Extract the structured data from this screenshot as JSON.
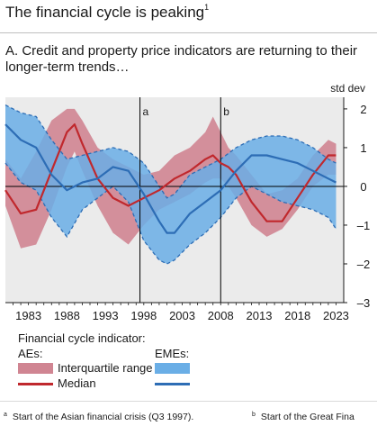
{
  "title": "The financial cycle is peaking",
  "title_note": "1",
  "panel_title": "A. Credit and property price indicators are returning to their longer-term trends…",
  "legend": {
    "header": "Financial cycle indicator:",
    "group_ae": "AEs:",
    "group_eme": "EMEs:",
    "iqr_label": "Interquartile range",
    "median_label": "Median"
  },
  "footnotes": [
    {
      "mark": "a",
      "text": "Start of the Asian financial crisis (Q3 1997)."
    },
    {
      "mark": "b",
      "text": "Start of the Great Fina"
    }
  ],
  "colors": {
    "ae_band": "#d08592",
    "ae_line": "#c0282d",
    "eme_band": "#6aaee6",
    "eme_line": "#2d6db5",
    "plot_bg": "#ebebeb"
  },
  "chart_data": {
    "type": "area",
    "unit_label": "std dev",
    "xlim": [
      1980,
      2024
    ],
    "ylim": [
      -3,
      2.3
    ],
    "x_ticks": [
      1983,
      1988,
      1993,
      1998,
      2003,
      2008,
      2013,
      2018,
      2023
    ],
    "y_ticks": [
      2,
      1,
      0,
      -1,
      -2,
      -3
    ],
    "y_tick_labels": [
      "2",
      "1",
      "0",
      "–1",
      "–2",
      "–3"
    ],
    "event_lines": [
      {
        "label": "a",
        "x": 1997.5
      },
      {
        "label": "b",
        "x": 2008.0
      }
    ],
    "grid": false,
    "series": [
      {
        "name": "AEs",
        "x": [
          1980,
          1982,
          1984,
          1986,
          1988,
          1989,
          1990,
          1992,
          1994,
          1996,
          1998,
          2000,
          2002,
          2004,
          2006,
          2007,
          2008,
          2009,
          2010,
          2012,
          2014,
          2016,
          2018,
          2020,
          2022,
          2023
        ],
        "median": [
          -0.1,
          -0.7,
          -0.6,
          0.4,
          1.4,
          1.6,
          1.1,
          0.2,
          -0.3,
          -0.5,
          -0.3,
          -0.1,
          0.2,
          0.4,
          0.7,
          0.8,
          0.6,
          0.5,
          0.3,
          -0.4,
          -0.9,
          -0.9,
          -0.3,
          0.3,
          0.8,
          0.8
        ],
        "q1": [
          -0.5,
          -1.6,
          -1.5,
          -0.6,
          0.5,
          0.9,
          0.4,
          -0.5,
          -1.2,
          -1.5,
          -1.0,
          -0.6,
          -0.4,
          -0.2,
          0.1,
          0.2,
          0.2,
          0.0,
          -0.3,
          -1.0,
          -1.3,
          -1.1,
          -0.6,
          0.0,
          0.3,
          0.3
        ],
        "q3": [
          0.7,
          0.2,
          0.9,
          1.7,
          2.0,
          2.0,
          1.7,
          1.0,
          0.7,
          0.5,
          0.3,
          0.4,
          0.8,
          1.0,
          1.4,
          1.8,
          1.4,
          1.0,
          0.8,
          0.3,
          -0.2,
          -0.1,
          0.2,
          0.8,
          1.2,
          1.1
        ]
      },
      {
        "name": "EMEs",
        "x": [
          1980,
          1982,
          1984,
          1986,
          1988,
          1990,
          1992,
          1994,
          1996,
          1998,
          2000,
          2001,
          2002,
          2004,
          2006,
          2008,
          2010,
          2012,
          2014,
          2016,
          2018,
          2020,
          2022,
          2023
        ],
        "median": [
          1.6,
          1.2,
          1.0,
          0.3,
          -0.1,
          0.1,
          0.2,
          0.5,
          0.4,
          -0.2,
          -0.9,
          -1.2,
          -1.2,
          -0.7,
          -0.4,
          -0.1,
          0.4,
          0.8,
          0.8,
          0.7,
          0.6,
          0.4,
          0.2,
          0.1
        ],
        "q1": [
          0.6,
          0.1,
          -0.1,
          -0.8,
          -1.3,
          -0.6,
          -0.3,
          0.0,
          -0.4,
          -1.4,
          -1.9,
          -2.0,
          -1.9,
          -1.5,
          -1.2,
          -0.8,
          -0.3,
          0.0,
          -0.2,
          -0.4,
          -0.5,
          -0.6,
          -0.8,
          -1.1
        ],
        "q3": [
          2.1,
          1.9,
          1.8,
          1.2,
          0.7,
          0.8,
          0.9,
          1.0,
          0.9,
          0.6,
          0.0,
          -0.3,
          -0.2,
          0.3,
          0.5,
          0.7,
          1.0,
          1.2,
          1.3,
          1.3,
          1.2,
          1.0,
          0.7,
          0.6
        ]
      }
    ]
  }
}
